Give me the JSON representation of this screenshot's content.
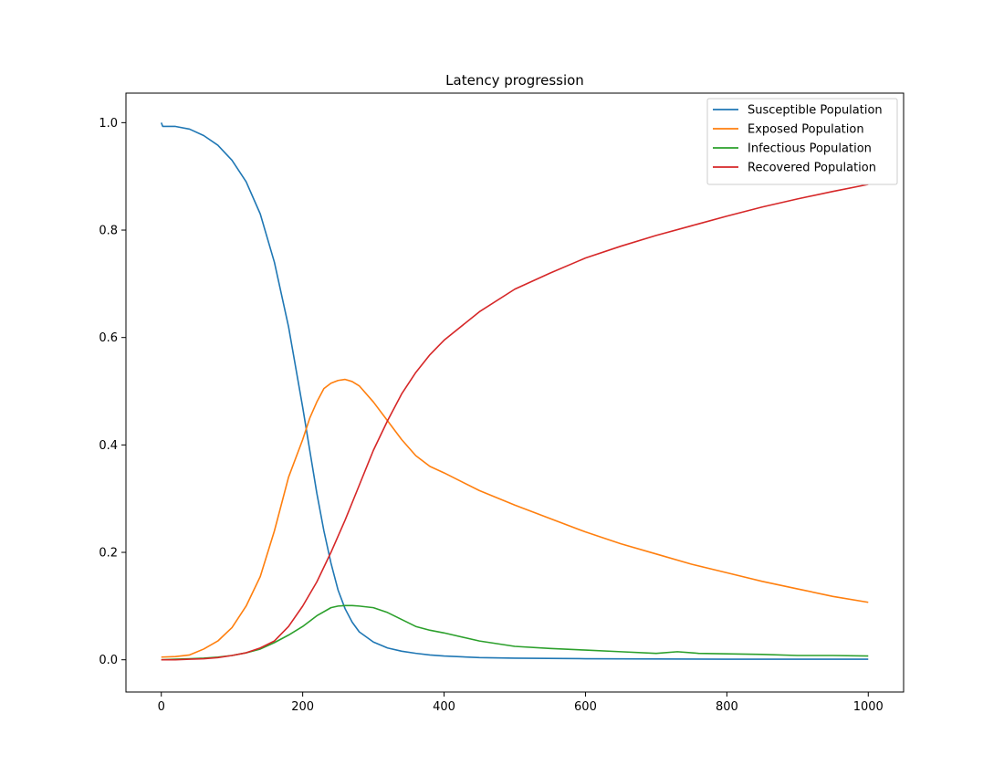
{
  "chart_data": {
    "type": "line",
    "title": "Latency progression",
    "xlabel": "",
    "ylabel": "",
    "xlim": [
      -50,
      1050
    ],
    "ylim": [
      -0.06,
      1.055
    ],
    "xticks": [
      0,
      200,
      400,
      600,
      800,
      1000
    ],
    "yticks": [
      0.0,
      0.2,
      0.4,
      0.6,
      0.8,
      1.0
    ],
    "grid": false,
    "legend_position": "top-right",
    "series": [
      {
        "name": "Susceptible Population",
        "color": "#1f77b4",
        "x": [
          0,
          2,
          20,
          40,
          60,
          80,
          100,
          120,
          140,
          160,
          180,
          200,
          210,
          220,
          230,
          240,
          250,
          260,
          270,
          280,
          300,
          320,
          340,
          360,
          380,
          400,
          450,
          500,
          600,
          700,
          800,
          900,
          1000
        ],
        "y": [
          1.0,
          0.993,
          0.993,
          0.988,
          0.976,
          0.958,
          0.93,
          0.89,
          0.83,
          0.74,
          0.62,
          0.47,
          0.39,
          0.31,
          0.24,
          0.18,
          0.13,
          0.095,
          0.07,
          0.052,
          0.033,
          0.022,
          0.016,
          0.012,
          0.009,
          0.007,
          0.004,
          0.003,
          0.002,
          0.0015,
          0.001,
          0.001,
          0.001
        ]
      },
      {
        "name": "Exposed Population",
        "color": "#ff7f0e",
        "x": [
          0,
          20,
          40,
          60,
          80,
          100,
          120,
          140,
          160,
          180,
          200,
          210,
          220,
          230,
          240,
          250,
          260,
          270,
          280,
          300,
          320,
          340,
          360,
          380,
          400,
          450,
          500,
          550,
          600,
          650,
          700,
          750,
          800,
          850,
          900,
          950,
          1000
        ],
        "y": [
          0.005,
          0.006,
          0.009,
          0.02,
          0.035,
          0.06,
          0.1,
          0.155,
          0.24,
          0.34,
          0.41,
          0.45,
          0.48,
          0.505,
          0.515,
          0.52,
          0.522,
          0.518,
          0.51,
          0.48,
          0.445,
          0.41,
          0.38,
          0.36,
          0.348,
          0.315,
          0.288,
          0.263,
          0.238,
          0.216,
          0.197,
          0.178,
          0.162,
          0.146,
          0.132,
          0.118,
          0.107
        ]
      },
      {
        "name": "Infectious Population",
        "color": "#2ca02c",
        "x": [
          0,
          20,
          40,
          60,
          80,
          100,
          120,
          140,
          160,
          180,
          200,
          220,
          240,
          250,
          260,
          270,
          280,
          300,
          320,
          340,
          360,
          380,
          400,
          450,
          500,
          550,
          600,
          650,
          700,
          730,
          760,
          800,
          850,
          900,
          950,
          1000
        ],
        "y": [
          0.0,
          0.001,
          0.002,
          0.003,
          0.005,
          0.008,
          0.013,
          0.02,
          0.032,
          0.046,
          0.062,
          0.082,
          0.097,
          0.1,
          0.101,
          0.101,
          0.1,
          0.097,
          0.088,
          0.075,
          0.062,
          0.055,
          0.05,
          0.035,
          0.025,
          0.021,
          0.018,
          0.015,
          0.012,
          0.015,
          0.012,
          0.011,
          0.01,
          0.008,
          0.008,
          0.007
        ]
      },
      {
        "name": "Recovered Population",
        "color": "#d62728",
        "x": [
          0,
          20,
          40,
          60,
          80,
          100,
          120,
          140,
          160,
          180,
          200,
          220,
          240,
          260,
          280,
          300,
          320,
          340,
          360,
          380,
          400,
          450,
          500,
          550,
          600,
          650,
          700,
          750,
          800,
          850,
          900,
          950,
          1000
        ],
        "y": [
          0.0,
          0.0,
          0.001,
          0.002,
          0.004,
          0.008,
          0.013,
          0.022,
          0.035,
          0.062,
          0.1,
          0.145,
          0.2,
          0.26,
          0.325,
          0.39,
          0.445,
          0.495,
          0.535,
          0.568,
          0.595,
          0.648,
          0.69,
          0.72,
          0.748,
          0.77,
          0.79,
          0.808,
          0.826,
          0.843,
          0.858,
          0.872,
          0.885
        ]
      }
    ]
  }
}
